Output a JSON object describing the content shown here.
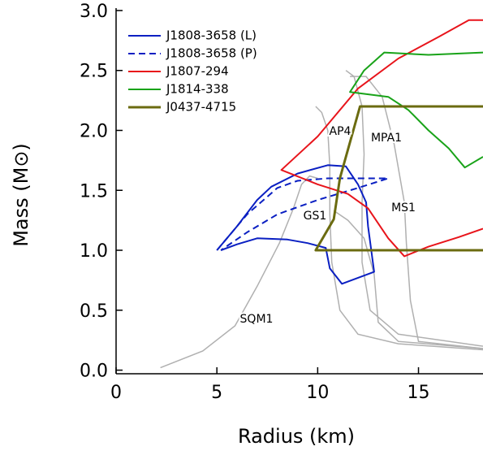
{
  "chart_data": {
    "type": "line",
    "x_label": "Radius (km)",
    "y_label": "Mass (M⊙)",
    "xlim": [
      0,
      18.2
    ],
    "ylim": [
      -0.03,
      3.02
    ],
    "xticks": [
      0,
      5,
      10,
      15
    ],
    "yticks": [
      {
        "value": 0,
        "label": "0.0"
      },
      0.5,
      {
        "value": 1,
        "label": "1.0"
      },
      1.5,
      {
        "value": 2,
        "label": "2.0"
      },
      2.5,
      {
        "value": 3,
        "label": "3.0"
      }
    ],
    "legend": "upper left",
    "series": [
      {
        "name": "J1808-3658 (L)",
        "color": "#0a1fc2",
        "style": "solid",
        "x": [
          5.0,
          6.0,
          7.0,
          7.7,
          9.0,
          10.5,
          11.4,
          12.0,
          12.4,
          12.5,
          12.8,
          11.2,
          10.6,
          10.4,
          9.5,
          8.5,
          7.0,
          6.0,
          5.2
        ],
        "values": [
          1.0,
          1.2,
          1.42,
          1.53,
          1.64,
          1.71,
          1.7,
          1.55,
          1.4,
          1.2,
          0.82,
          0.72,
          0.85,
          1.02,
          1.06,
          1.09,
          1.1,
          1.05,
          1.0
        ]
      },
      {
        "name": "J1808-3658 (P)",
        "color": "#0a1fc2",
        "style": "dashed",
        "x": [
          5.0,
          6.5,
          8.0,
          9.0,
          10.5,
          13.5,
          12.0,
          10.0,
          8.0,
          6.5,
          5.2
        ],
        "values": [
          1.0,
          1.3,
          1.52,
          1.58,
          1.6,
          1.6,
          1.52,
          1.42,
          1.3,
          1.15,
          1.0
        ]
      },
      {
        "name": "J1807-294",
        "color": "#e8141b",
        "style": "solid",
        "x": [
          18.2,
          17.0,
          15.5,
          14.3,
          13.5,
          12.5,
          11.5,
          10.0,
          8.2,
          10.0,
          12.0,
          14.0,
          16.0,
          17.5,
          18.2
        ],
        "values": [
          1.18,
          1.11,
          1.03,
          0.95,
          1.1,
          1.35,
          1.47,
          1.55,
          1.67,
          1.95,
          2.35,
          2.6,
          2.78,
          2.92,
          2.92
        ]
      },
      {
        "name": "J1814-338",
        "color": "#19a319",
        "style": "solid",
        "x": [
          18.2,
          17.3,
          16.5,
          15.5,
          14.5,
          13.5,
          11.6,
          12.3,
          13.3,
          15.5,
          18.2
        ],
        "values": [
          1.78,
          1.69,
          1.85,
          2.0,
          2.17,
          2.28,
          2.32,
          2.5,
          2.65,
          2.63,
          2.65
        ]
      },
      {
        "name": "J0437-4715",
        "color": "#6b6b10",
        "style": "thick",
        "x": [
          18.2,
          9.9,
          10.8,
          11.1,
          12.1,
          18.2
        ],
        "values": [
          1.0,
          1.0,
          1.26,
          1.6,
          2.2,
          2.2
        ]
      }
    ],
    "curves": [
      {
        "name": "AP4",
        "color": "#b0b0b0",
        "x": [
          18.2,
          14.0,
          12.0,
          11.1,
          10.7,
          10.6,
          10.6,
          10.5,
          10.2,
          9.9
        ],
        "values": [
          0.17,
          0.22,
          0.3,
          0.5,
          0.9,
          1.3,
          1.7,
          2.0,
          2.15,
          2.2
        ]
      },
      {
        "name": "MPA1",
        "color": "#b0b0b0",
        "x": [
          18.2,
          14.0,
          12.6,
          12.2,
          12.2,
          12.3,
          12.2,
          11.8,
          11.4
        ],
        "values": [
          0.2,
          0.3,
          0.5,
          0.9,
          1.4,
          1.8,
          2.2,
          2.45,
          2.5
        ]
      },
      {
        "name": "MS1",
        "color": "#b0b0b0",
        "x": [
          18.2,
          15.0,
          14.6,
          14.4,
          14.3,
          13.8,
          13.2,
          12.4,
          11.6
        ],
        "values": [
          0.18,
          0.24,
          0.58,
          1.06,
          1.4,
          1.88,
          2.28,
          2.45,
          2.45
        ]
      },
      {
        "name": "GS1",
        "color": "#b0b0b0",
        "x": [
          18.2,
          14.0,
          13.0,
          12.8,
          12.3,
          11.5,
          10.8
        ],
        "values": [
          0.18,
          0.24,
          0.4,
          0.8,
          1.1,
          1.25,
          1.33
        ]
      },
      {
        "name": "SQM1",
        "color": "#b0b0b0",
        "x": [
          2.2,
          4.3,
          5.9,
          7.0,
          8.1,
          8.8,
          9.2,
          9.6,
          10.0
        ],
        "values": [
          0.02,
          0.16,
          0.37,
          0.7,
          1.06,
          1.35,
          1.55,
          1.62,
          1.6
        ]
      }
    ]
  }
}
